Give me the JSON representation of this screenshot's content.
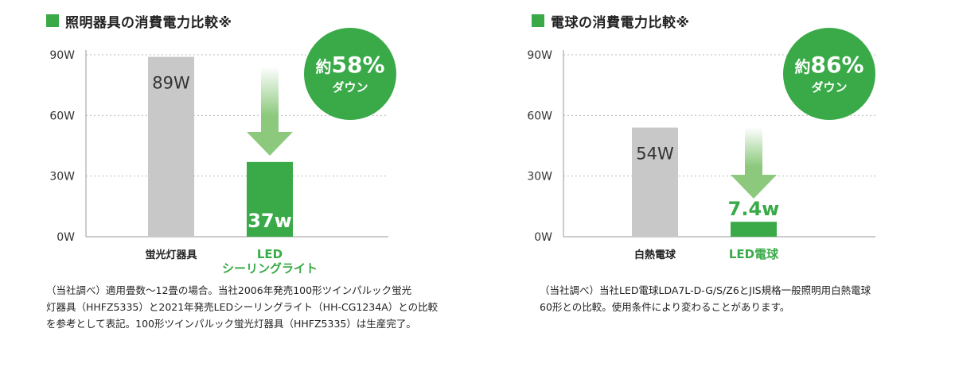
{
  "colors": {
    "green": "#3aaa48",
    "arrow_green": "#8cc97d",
    "gray": "#c8c8c8",
    "grid": "#bbbbbb"
  },
  "left": {
    "title": "照明器具の消費電力比較※",
    "badge": {
      "prefix": "約",
      "percent": "58%",
      "sub": "ダウン"
    },
    "note": "（当社調べ）適用畳数～12畳の場合。当社2006年発売100形ツインパルック蛍光\n灯器具（HHFZ5335）と2021年発売LEDシーリングライト（HH-CG1234A）との比較\nを参考として表記。100形ツインパルック蛍光灯器具（HHFZ5335）は生産完了。",
    "chart_data": {
      "type": "bar",
      "title": "照明器具の消費電力比較※",
      "categories": [
        "蛍光灯器具",
        "LEDシーリングライト"
      ],
      "category_lines": [
        [
          "蛍光灯器具"
        ],
        [
          "LED",
          "シーリングライト"
        ]
      ],
      "values": [
        89,
        37
      ],
      "value_labels": [
        "89W",
        "37w"
      ],
      "ylim": [
        0,
        90
      ],
      "yticks": [
        0,
        30,
        60,
        90
      ],
      "ytick_labels": [
        "0W",
        "30W",
        "60W",
        "90W"
      ],
      "grid": true
    }
  },
  "right": {
    "title": "電球の消費電力比較※",
    "badge": {
      "prefix": "約",
      "percent": "86%",
      "sub": "ダウン"
    },
    "note": "（当社調べ）当社LED電球LDA7L-D-G/S/Z6とJIS規格一般照明用白熱電球\n60形との比較。使用条件により変わることがあります。",
    "chart_data": {
      "type": "bar",
      "title": "電球の消費電力比較※",
      "categories": [
        "白熱電球",
        "LED電球"
      ],
      "category_lines": [
        [
          "白熱電球"
        ],
        [
          "LED電球"
        ]
      ],
      "values": [
        54,
        7.4
      ],
      "value_labels": [
        "54W",
        "7.4w"
      ],
      "ylim": [
        0,
        90
      ],
      "yticks": [
        0,
        30,
        60,
        90
      ],
      "ytick_labels": [
        "0W",
        "30W",
        "60W",
        "90W"
      ],
      "grid": true
    }
  }
}
